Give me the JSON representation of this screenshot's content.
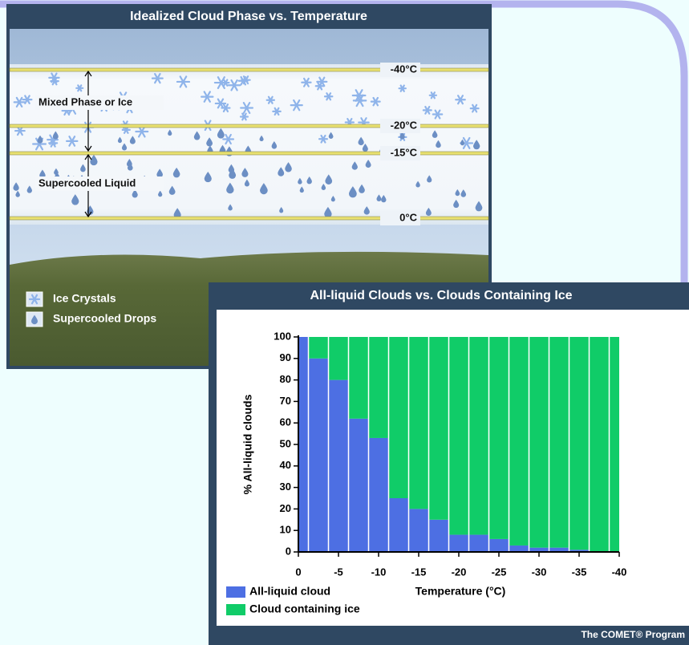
{
  "diagram": {
    "title": "Idealized Cloud Phase vs. Temperature",
    "levels": [
      "-40°C",
      "-20°C",
      "-15°C",
      "0°C"
    ],
    "zones": [
      "Mixed Phase or Ice",
      "Supercooled Liquid"
    ],
    "legend": [
      "Ice Crystals",
      "Supercooled Drops"
    ]
  },
  "chart_data": {
    "type": "histogram",
    "title": "All-liquid Clouds vs. Clouds Containing Ice",
    "x_label": "Temperature (°C)",
    "y_label": "% All-liquid clouds",
    "bins": [
      0,
      -1.25,
      -3.75,
      -6.25,
      -8.75,
      -11.25,
      -13.75,
      -16.25,
      -18.75,
      -21.25,
      -23.75,
      -26.25,
      -28.75,
      -31.25,
      -33.75,
      -36.25,
      -38.75,
      -40
    ],
    "series": [
      {
        "name": "All-liquid cloud",
        "color": "#4d6fe3",
        "values": [
          100,
          90,
          80,
          62,
          53,
          25,
          20,
          15,
          8,
          8,
          6,
          3,
          2,
          2,
          1,
          0,
          0
        ]
      },
      {
        "name": "Cloud containing ice",
        "color": "#10cc68",
        "values": [
          0,
          10,
          20,
          38,
          47,
          75,
          80,
          85,
          92,
          92,
          94,
          97,
          98,
          98,
          99,
          100,
          100
        ]
      }
    ],
    "stacked": true,
    "xlim": [
      0,
      -40
    ],
    "xticks": [
      0,
      -5,
      -10,
      -15,
      -20,
      -25,
      -30,
      -35,
      -40
    ],
    "ylim": [
      0,
      100
    ],
    "yticks": [
      0,
      10,
      20,
      30,
      40,
      50,
      60,
      70,
      80,
      90,
      100
    ],
    "legend_position": "bottom-left"
  },
  "footer": "The COMET® Program"
}
